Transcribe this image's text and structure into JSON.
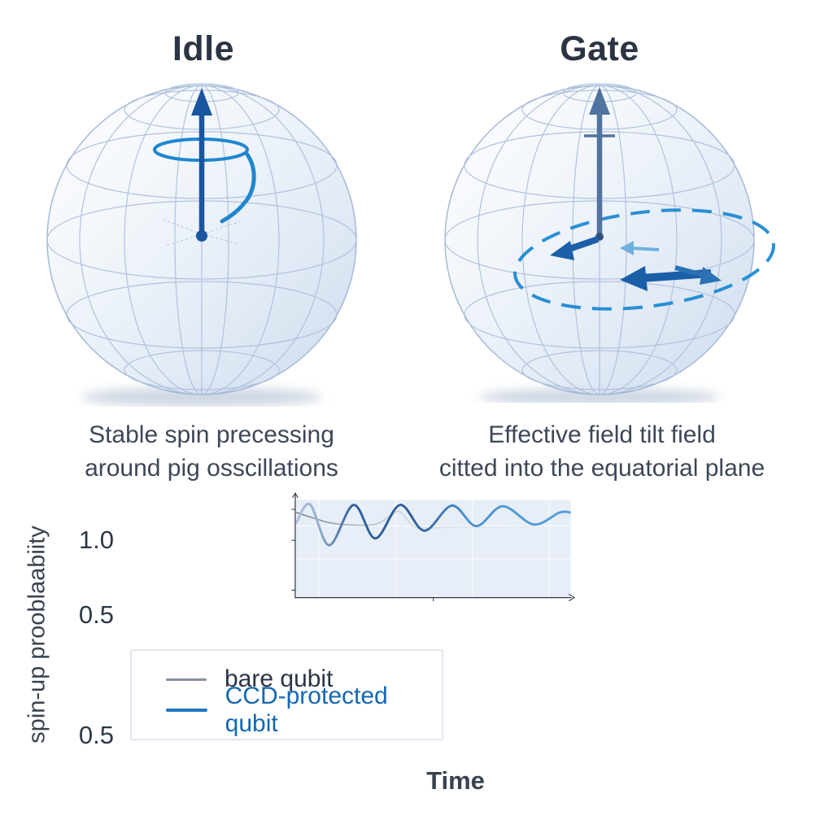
{
  "panels": [
    {
      "title": "Idle",
      "caption": [
        "Stable spin precessing",
        "around pig osscillations"
      ]
    },
    {
      "title": "Gate",
      "caption": [
        "Effective field tilt field",
        "citted into the equatorial plane"
      ]
    }
  ],
  "chart_data": {
    "type": "line",
    "xlabel": "Time",
    "ylabel": "spin-up prooblaabiity",
    "yticks": [
      "1.0",
      "0.5",
      "0.5"
    ],
    "xlim": [
      0,
      10
    ],
    "ylim": [
      -0.42,
      1.16
    ],
    "grid": true,
    "legend_position": "lower left",
    "series": [
      {
        "name": "bare qubit",
        "color": "#828c9c",
        "fades_out": true,
        "x": [
          0,
          0.55,
          1.25,
          2.1,
          2.9,
          3.45,
          3.78,
          4.3,
          5.0,
          5.9,
          6.9,
          7.9,
          8.7,
          9.4,
          10
        ],
        "y": [
          0.95,
          0.87,
          0.78,
          0.745,
          0.76,
          0.9,
          0.96,
          0.72,
          0.7,
          0.72,
          0.71,
          0.72,
          0.74,
          0.92,
          0.88
        ]
      },
      {
        "name": "CCD-protected qubit",
        "color": "#3b7fc0",
        "color_gradient": [
          "#a9bfd9",
          "#2e5f9b",
          "#57a0d9"
        ],
        "x": [
          0,
          0.5,
          1.2,
          2.09,
          2.88,
          3.78,
          4.67,
          5.67,
          6.56,
          7.52,
          8.65,
          9.6,
          10
        ],
        "y": [
          0.78,
          1.08,
          0.42,
          1.07,
          0.53,
          1.07,
          0.655,
          1.06,
          0.73,
          1.05,
          0.755,
          0.95,
          0.945
        ]
      }
    ]
  },
  "colors": {
    "sphere_wire": "#a3b8d8",
    "idle_arrow": "#1a55a0",
    "precession_spiral": "#1e87cf",
    "gate_axis_arrow": "#51739f",
    "gate_tilt_arrows": "#1b5fa8",
    "gate_dashed_orbit": "#1f8ad2",
    "plot_background": "#e8eef7",
    "axis": "#2b3748"
  }
}
